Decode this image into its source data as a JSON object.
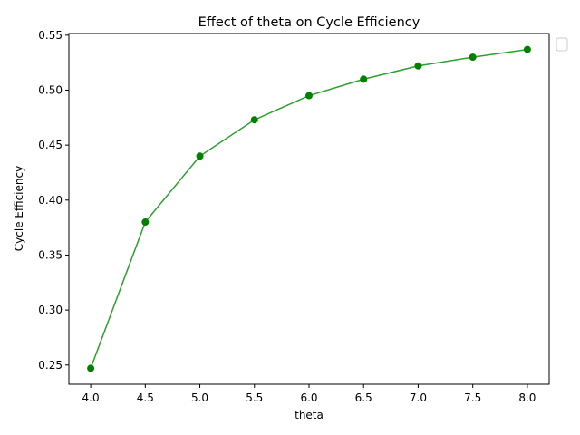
{
  "chart_data": {
    "type": "line",
    "title": "Effect of theta on Cycle Efficiency",
    "xlabel": "theta",
    "ylabel": "Cycle Efficiency",
    "x": [
      4.0,
      4.5,
      5.0,
      5.5,
      6.0,
      6.5,
      7.0,
      7.5,
      8.0
    ],
    "series": [
      {
        "values": [
          0.247,
          0.38,
          0.44,
          0.473,
          0.495,
          0.51,
          0.522,
          0.53,
          0.537
        ],
        "line_color": "#2ca02c",
        "marker_color": "#008000"
      }
    ],
    "xlim": [
      3.8,
      8.2
    ],
    "ylim": [
      0.2325,
      0.5515
    ],
    "xticks": [
      "4.0",
      "4.5",
      "5.0",
      "5.5",
      "6.0",
      "6.5",
      "7.0",
      "7.5",
      "8.0"
    ],
    "yticks": [
      "0.25",
      "0.30",
      "0.35",
      "0.40",
      "0.45",
      "0.50",
      "0.55"
    ],
    "grid": false,
    "legend": "upper-right-outside (empty)"
  }
}
